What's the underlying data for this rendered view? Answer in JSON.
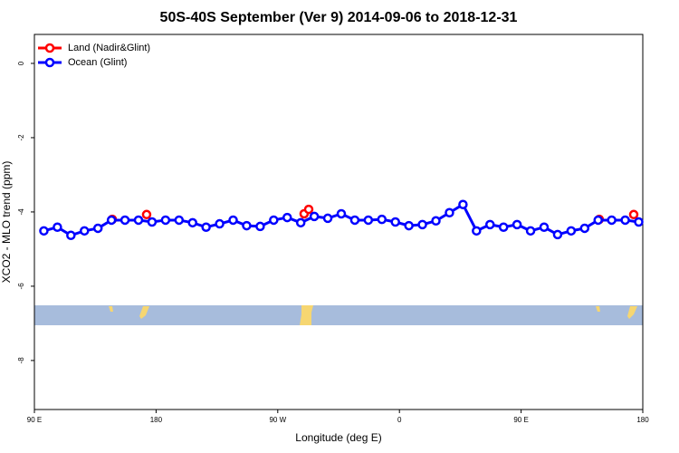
{
  "chart_data": {
    "type": "line",
    "title": "50S-40S September (Ver 9)   2014-09-06 to 2018-12-31",
    "xlabel": "Longitude (deg E)",
    "ylabel": "XCO2 - MLO trend (ppm)",
    "xlim": [
      90,
      540
    ],
    "xticks": [
      {
        "value": 90,
        "label": "90 E"
      },
      {
        "value": 180,
        "label": "180"
      },
      {
        "value": 270,
        "label": "90 W"
      },
      {
        "value": 360,
        "label": "0"
      },
      {
        "value": 450,
        "label": "90 E"
      },
      {
        "value": 540,
        "label": "180"
      }
    ],
    "ylim": [
      -9.32,
      0.78
    ],
    "yticks": [
      0,
      -2,
      -4,
      -6,
      -8
    ],
    "legend": "top-left",
    "series": [
      {
        "name": "Land (Nadir&Glint)",
        "color": "#ff0000",
        "x": [
          147.6,
          173,
          289.5,
          292.9,
          507.8,
          533.3
        ],
        "values": [
          -4.2,
          -4.07,
          -4.05,
          -3.93,
          -4.2,
          -4.07
        ]
      },
      {
        "name": "Ocean (Glint)",
        "color": "#0000ff",
        "x": [
          97,
          107,
          117,
          127,
          137,
          147,
          157,
          167,
          177,
          187,
          197,
          207,
          217,
          227,
          237,
          247,
          257,
          267,
          277,
          287,
          297,
          307,
          317,
          327,
          337,
          347,
          357,
          367,
          377,
          387,
          397,
          407,
          417,
          427,
          437,
          447,
          457,
          467,
          477,
          487,
          497,
          507,
          517,
          527,
          537
        ],
        "values": [
          -4.51,
          -4.41,
          -4.63,
          -4.51,
          -4.44,
          -4.22,
          -4.22,
          -4.22,
          -4.27,
          -4.22,
          -4.22,
          -4.29,
          -4.41,
          -4.32,
          -4.22,
          -4.37,
          -4.39,
          -4.22,
          -4.15,
          -4.29,
          -4.12,
          -4.17,
          -4.05,
          -4.22,
          -4.22,
          -4.2,
          -4.27,
          -4.37,
          -4.34,
          -4.24,
          -4.02,
          -3.8,
          -4.51,
          -4.34,
          -4.41,
          -4.34,
          -4.51,
          -4.41,
          -4.61,
          -4.51,
          -4.44,
          -4.22,
          -4.22,
          -4.22,
          -4.27
        ]
      }
    ]
  }
}
